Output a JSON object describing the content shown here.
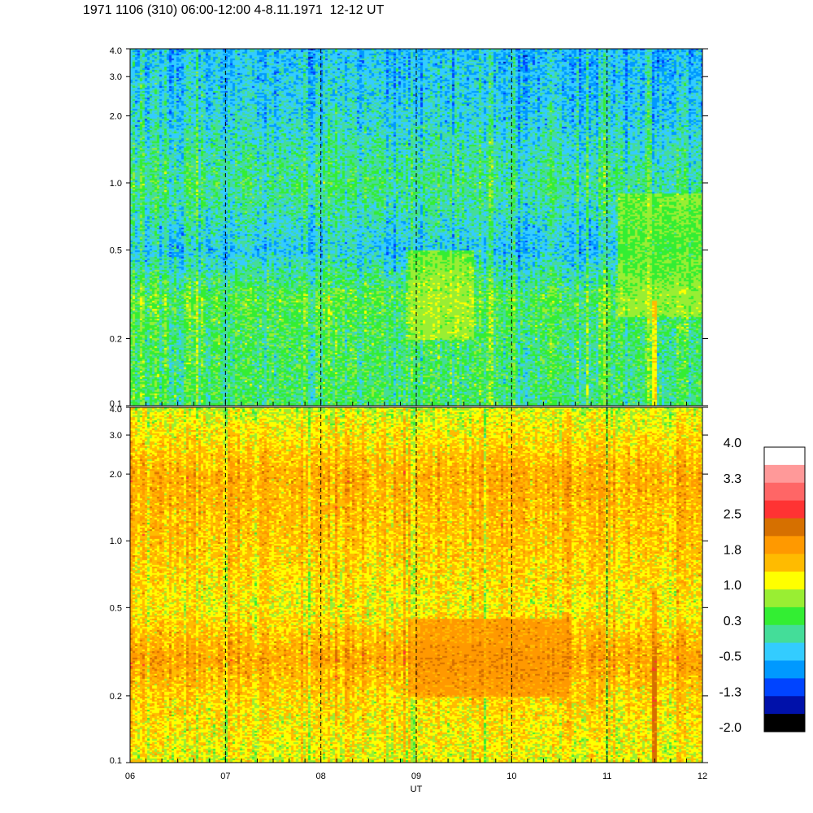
{
  "title": "1971 1106 (310) 06:00-12:00 4-8.11.1971  12-12 UT",
  "chart_data": [
    {
      "type": "heatmap",
      "panel": "top",
      "x_unit": "UT hour",
      "x_range": [
        6,
        12
      ],
      "y_scale": "log",
      "y_range": [
        0.1,
        4.0
      ],
      "y_tick_labels": [
        "0.1",
        "0.2",
        "0.5",
        "1.0",
        "2.0",
        "3.0",
        "4.0"
      ],
      "vertical_dashed_lines_at": [
        7,
        8,
        9,
        10,
        11
      ],
      "approx_level_profile": [
        {
          "y": 0.1,
          "level": 0.3
        },
        {
          "y": 0.2,
          "level": 0.3
        },
        {
          "y": 0.3,
          "level": 0.5
        },
        {
          "y": 0.5,
          "level": -0.3
        },
        {
          "y": 1.0,
          "level": 0.2
        },
        {
          "y": 2.0,
          "level": -0.2
        },
        {
          "y": 4.0,
          "level": -0.4
        }
      ],
      "features": [
        {
          "x_from": 8.9,
          "x_to": 9.6,
          "y_from": 0.2,
          "y_to": 0.5,
          "level": 1.1
        },
        {
          "x_from": 11.1,
          "x_to": 12.0,
          "y_from": 0.25,
          "y_to": 0.9,
          "level": 1.0
        },
        {
          "x_from": 11.45,
          "x_to": 11.52,
          "y_from": 0.1,
          "y_to": 0.3,
          "level": 1.9
        }
      ]
    },
    {
      "type": "heatmap",
      "panel": "bottom",
      "x_unit": "UT hour",
      "x_range": [
        6,
        12
      ],
      "y_scale": "log",
      "y_range": [
        0.1,
        4.0
      ],
      "y_tick_labels": [
        "0.1",
        "0.2",
        "0.5",
        "1.0",
        "2.0",
        "3.0",
        "4.0"
      ],
      "x_tick_labels": [
        "06",
        "07",
        "08",
        "09",
        "10",
        "11",
        "12"
      ],
      "xlabel": "UT",
      "vertical_dashed_lines_at": [
        7,
        8,
        9,
        10,
        11
      ],
      "approx_level_profile": [
        {
          "y": 0.1,
          "level": 1.1
        },
        {
          "y": 0.2,
          "level": 1.4
        },
        {
          "y": 0.3,
          "level": 1.8
        },
        {
          "y": 0.5,
          "level": 1.2
        },
        {
          "y": 1.0,
          "level": 1.5
        },
        {
          "y": 2.0,
          "level": 1.7
        },
        {
          "y": 4.0,
          "level": 1.0
        }
      ],
      "features": [
        {
          "x_from": 8.9,
          "x_to": 10.6,
          "y_from": 0.2,
          "y_to": 0.45,
          "level": 2.1
        },
        {
          "x_from": 11.45,
          "x_to": 11.52,
          "y_from": 0.1,
          "y_to": 0.3,
          "level": 2.8
        },
        {
          "x_from": 11.45,
          "x_to": 11.52,
          "y_from": 0.3,
          "y_to": 0.6,
          "level": 2.3
        }
      ]
    }
  ],
  "colorbar": {
    "tick_labels": [
      "4.0",
      "3.3",
      "2.5",
      "1.8",
      "1.0",
      "0.3",
      "-0.5",
      "-1.3",
      "-2.0"
    ],
    "range": [
      -2.0,
      4.0
    ],
    "colors_low_to_high": [
      "#000000",
      "#0011aa",
      "#0044ff",
      "#0099ff",
      "#33ccff",
      "#44dd99",
      "#33ee33",
      "#99ee33",
      "#ffff00",
      "#ffbb00",
      "#ff9900",
      "#d67000",
      "#ff3333",
      "#ff6666",
      "#ff9999",
      "#ffffff"
    ]
  }
}
